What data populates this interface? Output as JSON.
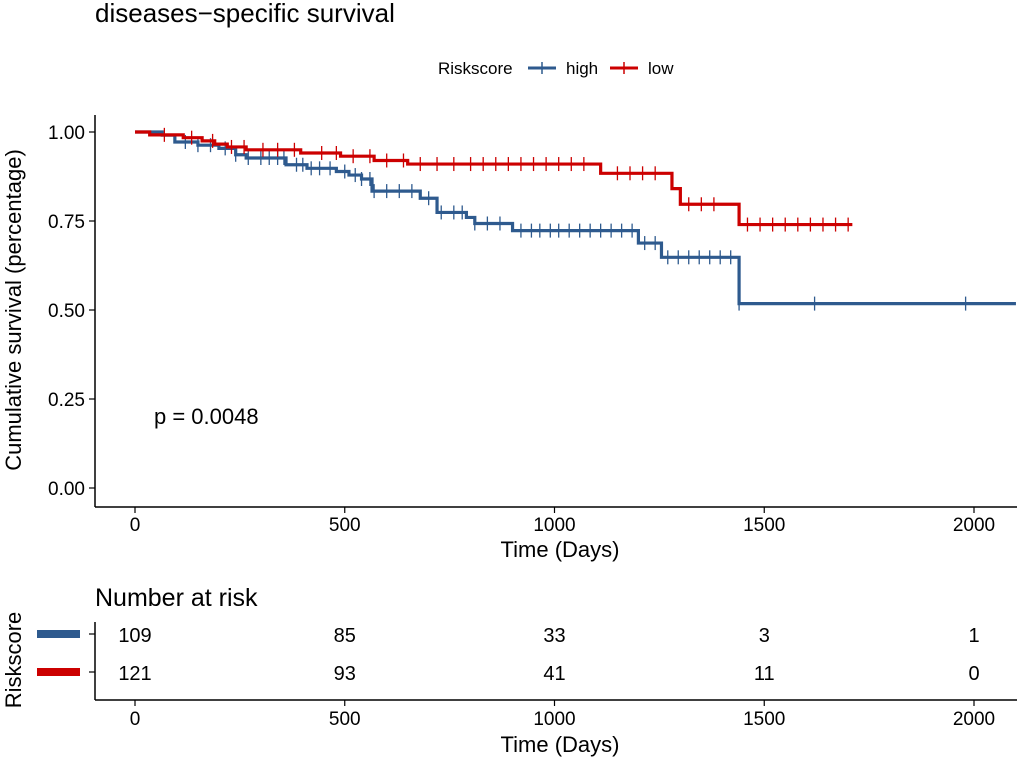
{
  "chart_data": {
    "type": "line",
    "subtype": "kaplan-meier",
    "title": "diseases−specific survival",
    "legend": {
      "title": "Riskscore",
      "placement": "top",
      "entries": [
        {
          "name": "high",
          "color": "#2E5A8E"
        },
        {
          "name": "low",
          "color": "#CC0000"
        }
      ]
    },
    "xlabel": "Time (Days)",
    "ylabel": "Cumulative survival (percentage)",
    "xlim": [
      0,
      2100
    ],
    "ylim": [
      0,
      1.0
    ],
    "x_ticks": [
      0,
      500,
      1000,
      1500,
      2000
    ],
    "x_tick_labels": [
      "0",
      "500",
      "1000",
      "1500",
      "2000"
    ],
    "y_ticks": [
      0,
      0.25,
      0.5,
      0.75,
      1.0
    ],
    "y_tick_labels": [
      "0.00",
      "0.25",
      "0.50",
      "0.75",
      "1.00"
    ],
    "annotation": "p = 0.0048",
    "series": [
      {
        "name": "high",
        "color": "#2E5A8E",
        "steps": [
          {
            "x": 0,
            "y": 1.0
          },
          {
            "x": 65,
            "y": 0.991
          },
          {
            "x": 95,
            "y": 0.972
          },
          {
            "x": 150,
            "y": 0.963
          },
          {
            "x": 200,
            "y": 0.954
          },
          {
            "x": 240,
            "y": 0.936
          },
          {
            "x": 265,
            "y": 0.927
          },
          {
            "x": 360,
            "y": 0.908
          },
          {
            "x": 410,
            "y": 0.898
          },
          {
            "x": 480,
            "y": 0.889
          },
          {
            "x": 510,
            "y": 0.879
          },
          {
            "x": 540,
            "y": 0.868
          },
          {
            "x": 565,
            "y": 0.834
          },
          {
            "x": 680,
            "y": 0.814
          },
          {
            "x": 720,
            "y": 0.774
          },
          {
            "x": 790,
            "y": 0.76
          },
          {
            "x": 810,
            "y": 0.743
          },
          {
            "x": 900,
            "y": 0.723
          },
          {
            "x": 1200,
            "y": 0.688
          },
          {
            "x": 1255,
            "y": 0.648
          },
          {
            "x": 1440,
            "y": 0.518
          }
        ],
        "end_x": 2100,
        "censor_x": [
          120,
          150,
          180,
          215,
          240,
          270,
          300,
          320,
          340,
          355,
          385,
          400,
          420,
          440,
          465,
          500,
          525,
          540,
          560,
          570,
          600,
          630,
          660,
          700,
          730,
          760,
          780,
          810,
          840,
          870,
          920,
          945,
          965,
          990,
          1010,
          1035,
          1060,
          1085,
          1110,
          1135,
          1160,
          1185,
          1215,
          1240,
          1270,
          1295,
          1320,
          1345,
          1370,
          1395,
          1420,
          1440,
          1620,
          1980
        ]
      },
      {
        "name": "low",
        "color": "#CC0000",
        "steps": [
          {
            "x": 0,
            "y": 1.0
          },
          {
            "x": 35,
            "y": 0.992
          },
          {
            "x": 115,
            "y": 0.984
          },
          {
            "x": 160,
            "y": 0.975
          },
          {
            "x": 190,
            "y": 0.966
          },
          {
            "x": 220,
            "y": 0.958
          },
          {
            "x": 265,
            "y": 0.95
          },
          {
            "x": 395,
            "y": 0.941
          },
          {
            "x": 490,
            "y": 0.932
          },
          {
            "x": 570,
            "y": 0.92
          },
          {
            "x": 650,
            "y": 0.91
          },
          {
            "x": 1110,
            "y": 0.884
          },
          {
            "x": 1280,
            "y": 0.841
          },
          {
            "x": 1300,
            "y": 0.797
          },
          {
            "x": 1380,
            "y": 0.797
          },
          {
            "x": 1440,
            "y": 0.74
          }
        ],
        "end_x": 1710,
        "censor_x": [
          70,
          135,
          185,
          230,
          260,
          305,
          340,
          380,
          445,
          480,
          520,
          560,
          600,
          640,
          680,
          720,
          760,
          800,
          830,
          860,
          890,
          920,
          950,
          980,
          1010,
          1040,
          1070,
          1150,
          1180,
          1210,
          1240,
          1320,
          1350,
          1380,
          1460,
          1490,
          1520,
          1550,
          1580,
          1610,
          1640,
          1670,
          1700
        ]
      }
    ],
    "risk_table": {
      "title": "Number at risk",
      "ylabel": "Riskscore",
      "xlabel": "Time (Days)",
      "times": [
        0,
        500,
        1000,
        1500,
        2000
      ],
      "time_labels": [
        "0",
        "500",
        "1000",
        "1500",
        "2000"
      ],
      "rows": [
        {
          "name": "high",
          "color": "#2E5A8E",
          "counts": [
            "109",
            "85",
            "33",
            "3",
            "1"
          ]
        },
        {
          "name": "low",
          "color": "#CC0000",
          "counts": [
            "121",
            "93",
            "41",
            "11",
            "0"
          ]
        }
      ]
    }
  }
}
